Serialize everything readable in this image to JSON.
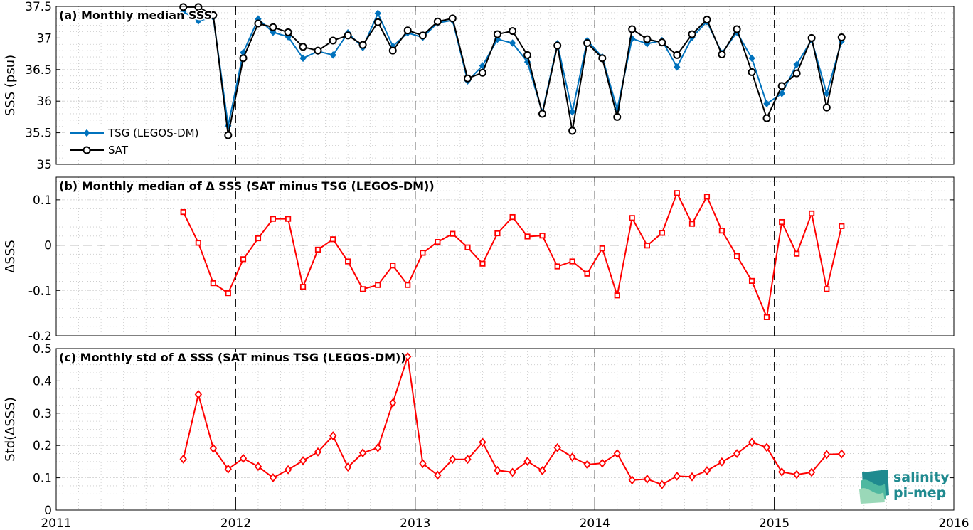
{
  "chart_data": [
    {
      "type": "line",
      "title": "(a) Monthly median SSS",
      "ylabel": "SSS (psu)",
      "xlim": [
        2011,
        2016
      ],
      "ylim": [
        35,
        37.5
      ],
      "yticks": [
        35,
        35.5,
        36,
        36.5,
        37,
        37.5
      ],
      "ytick_labels": [
        "35",
        "35.5",
        "36",
        "36.5",
        "37",
        "37.5"
      ],
      "grid": true,
      "legend_position": "lower-left",
      "x": [
        2011.708,
        2011.792,
        2011.875,
        2011.958,
        2012.042,
        2012.125,
        2012.208,
        2012.292,
        2012.375,
        2012.458,
        2012.542,
        2012.625,
        2012.708,
        2012.792,
        2012.875,
        2012.958,
        2013.042,
        2013.125,
        2013.208,
        2013.292,
        2013.375,
        2013.458,
        2013.542,
        2013.625,
        2013.708,
        2013.792,
        2013.875,
        2013.958,
        2014.042,
        2014.125,
        2014.208,
        2014.292,
        2014.375,
        2014.458,
        2014.542,
        2014.625,
        2014.708,
        2014.792,
        2014.875,
        2014.958,
        2015.042,
        2015.125,
        2015.208,
        2015.292,
        2015.375
      ],
      "series": [
        {
          "name": "TSG (LEGOS-DM)",
          "color": "#0072bd",
          "marker": "diamond-filled",
          "values": [
            37.42,
            37.27,
            37.33,
            35.61,
            36.77,
            37.3,
            37.09,
            37.02,
            36.68,
            36.79,
            36.73,
            37.08,
            36.85,
            37.39,
            36.87,
            37.08,
            37.01,
            37.24,
            37.28,
            36.32,
            36.56,
            36.98,
            36.92,
            36.62,
            35.82,
            36.91,
            35.83,
            36.96,
            36.7,
            35.87,
            36.99,
            36.91,
            36.96,
            36.54,
            37.01,
            37.26,
            36.76,
            37.09,
            36.68,
            35.96,
            36.12,
            36.58,
            36.97,
            36.12,
            36.95
          ]
        },
        {
          "name": "SAT",
          "color": "#000000",
          "marker": "circle-open",
          "values": [
            37.49,
            37.49,
            37.36,
            35.46,
            36.68,
            37.23,
            37.17,
            37.09,
            36.86,
            36.8,
            36.96,
            37.04,
            36.89,
            37.25,
            36.8,
            37.12,
            37.04,
            37.26,
            37.31,
            36.36,
            36.45,
            37.06,
            37.11,
            36.73,
            35.8,
            36.88,
            35.53,
            36.92,
            36.68,
            35.75,
            37.14,
            36.98,
            36.93,
            36.73,
            37.06,
            37.29,
            36.74,
            37.14,
            36.46,
            35.73,
            36.24,
            36.44,
            37.0,
            35.9,
            37.01
          ]
        }
      ]
    },
    {
      "type": "line",
      "title": "(b) Monthly median of Δ SSS (SAT minus TSG (LEGOS-DM))",
      "ylabel": "ΔSSS",
      "xlim": [
        2011,
        2016
      ],
      "ylim": [
        -0.2,
        0.15
      ],
      "yticks": [
        -0.2,
        -0.1,
        0,
        0.1
      ],
      "ytick_labels": [
        "-0.2",
        "-0.1",
        "0",
        "0.1"
      ],
      "grid": true,
      "zero_line": true,
      "x": [
        2011.708,
        2011.792,
        2011.875,
        2011.958,
        2012.042,
        2012.125,
        2012.208,
        2012.292,
        2012.375,
        2012.458,
        2012.542,
        2012.625,
        2012.708,
        2012.792,
        2012.875,
        2012.958,
        2013.042,
        2013.125,
        2013.208,
        2013.292,
        2013.375,
        2013.458,
        2013.542,
        2013.625,
        2013.708,
        2013.792,
        2013.875,
        2013.958,
        2014.042,
        2014.125,
        2014.208,
        2014.292,
        2014.375,
        2014.458,
        2014.542,
        2014.625,
        2014.708,
        2014.792,
        2014.875,
        2014.958,
        2015.042,
        2015.125,
        2015.208,
        2015.292,
        2015.375
      ],
      "series": [
        {
          "color": "#ff0000",
          "marker": "square-open",
          "values": [
            0.073,
            0.005,
            -0.084,
            -0.106,
            -0.031,
            0.015,
            0.058,
            0.058,
            -0.092,
            -0.01,
            0.013,
            -0.036,
            -0.097,
            -0.088,
            -0.045,
            -0.088,
            -0.017,
            0.007,
            0.025,
            -0.005,
            -0.041,
            0.026,
            0.062,
            0.019,
            0.021,
            -0.047,
            -0.036,
            -0.063,
            -0.007,
            -0.111,
            0.06,
            -0.001,
            0.027,
            0.115,
            0.047,
            0.107,
            0.032,
            -0.024,
            -0.079,
            -0.159,
            0.051,
            -0.019,
            0.07,
            -0.097,
            0.042
          ]
        }
      ]
    },
    {
      "type": "line",
      "title": "(c) Monthly std of Δ SSS (SAT minus TSG (LEGOS-DM))",
      "ylabel": "Std(ΔSSS)",
      "xlim": [
        2011,
        2016
      ],
      "ylim": [
        0,
        0.5
      ],
      "yticks": [
        0,
        0.1,
        0.2,
        0.3,
        0.4,
        0.5
      ],
      "ytick_labels": [
        "0",
        "0.1",
        "0.2",
        "0.3",
        "0.4",
        "0.5"
      ],
      "xticks": [
        2011,
        2012,
        2013,
        2014,
        2015,
        2016
      ],
      "xtick_labels": [
        "2011",
        "2012",
        "2013",
        "2014",
        "2015",
        "2016"
      ],
      "grid": true,
      "x": [
        2011.708,
        2011.792,
        2011.875,
        2011.958,
        2012.042,
        2012.125,
        2012.208,
        2012.292,
        2012.375,
        2012.458,
        2012.542,
        2012.625,
        2012.708,
        2012.792,
        2012.875,
        2012.958,
        2013.042,
        2013.125,
        2013.208,
        2013.292,
        2013.375,
        2013.458,
        2013.542,
        2013.625,
        2013.708,
        2013.792,
        2013.875,
        2013.958,
        2014.042,
        2014.125,
        2014.208,
        2014.292,
        2014.375,
        2014.458,
        2014.542,
        2014.625,
        2014.708,
        2014.792,
        2014.875,
        2014.958,
        2015.042,
        2015.125,
        2015.208,
        2015.292,
        2015.375
      ],
      "series": [
        {
          "color": "#ff0000",
          "marker": "diamond-open",
          "values": [
            0.158,
            0.358,
            0.191,
            0.127,
            0.16,
            0.135,
            0.1,
            0.125,
            0.153,
            0.18,
            0.23,
            0.133,
            0.177,
            0.193,
            0.332,
            0.475,
            0.144,
            0.108,
            0.157,
            0.157,
            0.21,
            0.123,
            0.117,
            0.151,
            0.122,
            0.193,
            0.164,
            0.141,
            0.145,
            0.175,
            0.093,
            0.096,
            0.079,
            0.105,
            0.103,
            0.122,
            0.149,
            0.175,
            0.21,
            0.194,
            0.118,
            0.11,
            0.117,
            0.172,
            0.174
          ]
        }
      ]
    }
  ],
  "logo": {
    "line1": "salinity",
    "line2": "pi-mep",
    "color": "#1f8a8f"
  }
}
